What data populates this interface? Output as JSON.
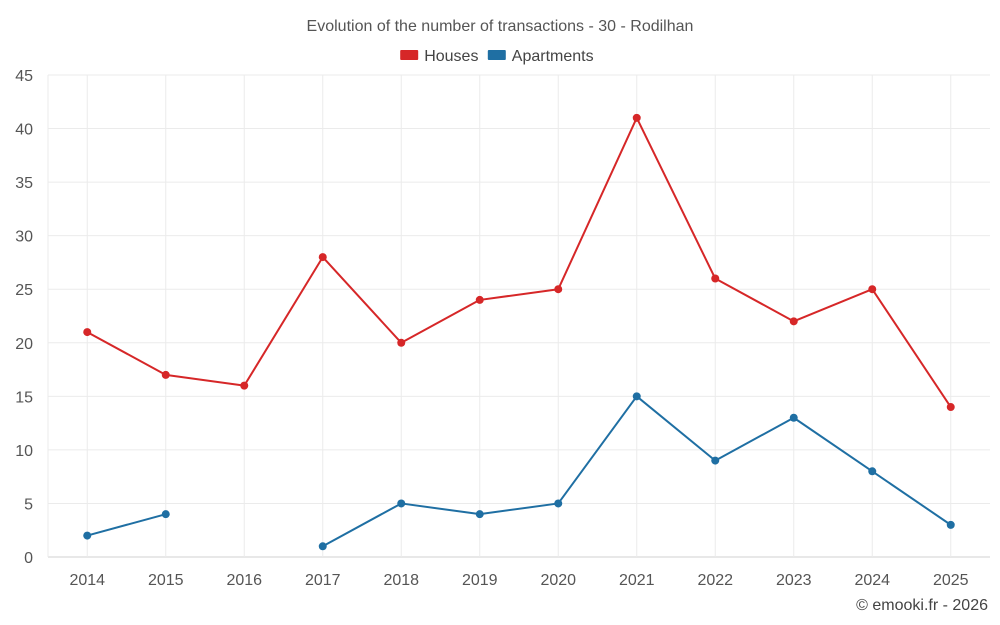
{
  "chart_data": {
    "type": "line",
    "title": "Evolution of the number of transactions - 30 - Rodilhan",
    "categories": [
      "2014",
      "2015",
      "2016",
      "2017",
      "2018",
      "2019",
      "2020",
      "2021",
      "2022",
      "2023",
      "2024",
      "2025"
    ],
    "series": [
      {
        "name": "Houses",
        "color": "#d62728",
        "values": [
          21,
          17,
          16,
          28,
          20,
          24,
          25,
          41,
          26,
          22,
          25,
          14
        ]
      },
      {
        "name": "Apartments",
        "color": "#1f6fa3",
        "values": [
          2,
          4,
          null,
          1,
          5,
          4,
          5,
          15,
          9,
          13,
          8,
          3
        ]
      }
    ],
    "ylim": [
      0,
      45
    ],
    "yticks": [
      0,
      5,
      10,
      15,
      20,
      25,
      30,
      35,
      40,
      45
    ],
    "grid": true,
    "legend_position": "top-center",
    "xlabel": "",
    "ylabel": ""
  },
  "credit": "© emooki.fr - 2026"
}
